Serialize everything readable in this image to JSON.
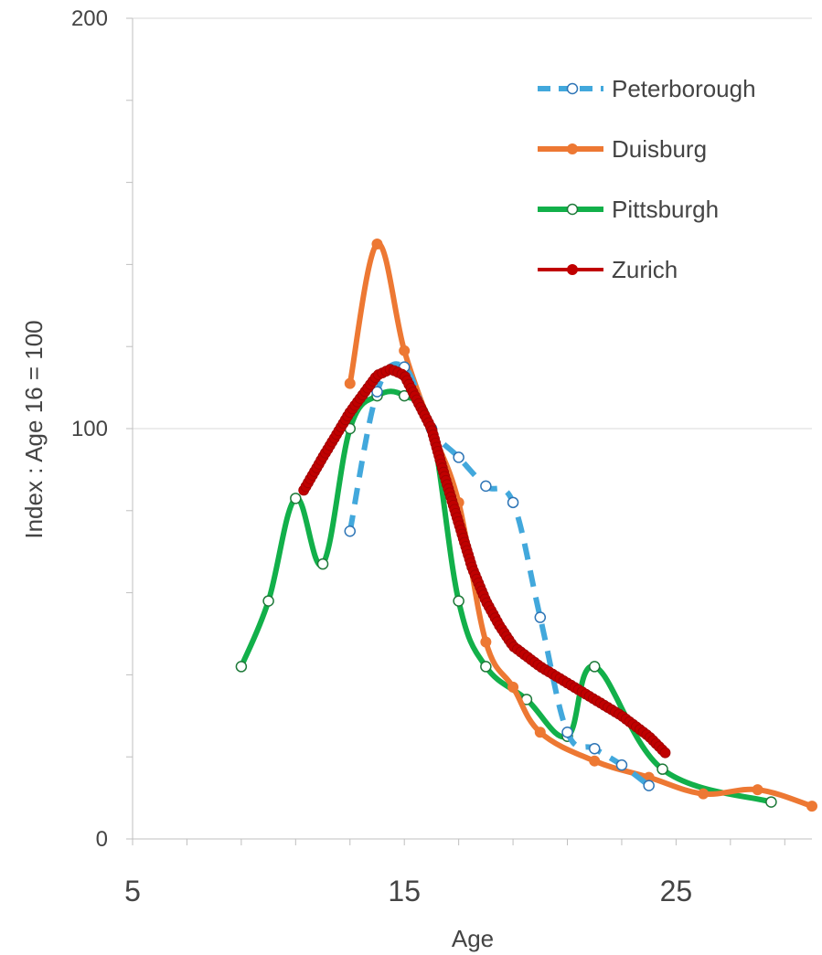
{
  "chart_data": {
    "type": "line",
    "xlabel": "Age",
    "ylabel": "Index : Age 16 = 100",
    "xlim": [
      5,
      30
    ],
    "ylim": [
      0,
      200
    ],
    "x_ticks": [
      5,
      15,
      25
    ],
    "x_minor_step": 2,
    "y_ticks": [
      0,
      100,
      200
    ],
    "y_minor_step": 20,
    "grid": "horizontal major",
    "legend_position": "top-right",
    "series": [
      {
        "name": "Peterborough",
        "color": "#42a8dc",
        "line": "dashed",
        "marker": "hollow-circle",
        "points": [
          [
            13,
            75
          ],
          [
            14,
            109
          ],
          [
            15,
            115
          ],
          [
            16,
            100
          ],
          [
            17,
            93
          ],
          [
            18,
            86
          ],
          [
            19,
            82
          ],
          [
            20,
            54
          ],
          [
            21,
            26
          ],
          [
            22,
            22
          ],
          [
            23,
            18
          ],
          [
            24,
            13
          ]
        ]
      },
      {
        "name": "Duisburg",
        "color": "#ed7833",
        "line": "solid",
        "marker": "filled-circle",
        "points": [
          [
            13,
            111
          ],
          [
            14,
            145
          ],
          [
            15,
            119
          ],
          [
            16,
            100
          ],
          [
            17,
            82
          ],
          [
            18,
            48
          ],
          [
            19,
            37
          ],
          [
            20,
            26
          ],
          [
            22,
            19
          ],
          [
            24,
            15
          ],
          [
            26,
            11
          ],
          [
            28,
            12
          ],
          [
            30,
            8
          ]
        ]
      },
      {
        "name": "Pittsburgh",
        "color": "#12b04a",
        "line": "solid",
        "marker": "hollow-circle",
        "points": [
          [
            9,
            42
          ],
          [
            10,
            58
          ],
          [
            11,
            83
          ],
          [
            12,
            67
          ],
          [
            13,
            100
          ],
          [
            14,
            108
          ],
          [
            15,
            108
          ],
          [
            16,
            100
          ],
          [
            17,
            58
          ],
          [
            18,
            42
          ],
          [
            19.5,
            34
          ],
          [
            21,
            25
          ],
          [
            22,
            42
          ],
          [
            24.5,
            17
          ],
          [
            28.5,
            9
          ]
        ]
      },
      {
        "name": "Zurich",
        "color": "#c00000",
        "line": "solid",
        "marker": "filled-circle-dense",
        "points": [
          [
            11.3,
            85
          ],
          [
            12,
            93
          ],
          [
            13,
            104
          ],
          [
            14,
            113
          ],
          [
            14.5,
            114.5
          ],
          [
            15,
            113
          ],
          [
            16,
            100
          ],
          [
            16.5,
            88
          ],
          [
            17,
            77
          ],
          [
            17.5,
            66
          ],
          [
            18,
            58
          ],
          [
            18.5,
            52
          ],
          [
            19,
            47
          ],
          [
            20,
            42
          ],
          [
            21,
            38
          ],
          [
            22,
            34
          ],
          [
            23,
            30
          ],
          [
            24,
            25
          ],
          [
            24.6,
            21
          ]
        ]
      }
    ]
  }
}
